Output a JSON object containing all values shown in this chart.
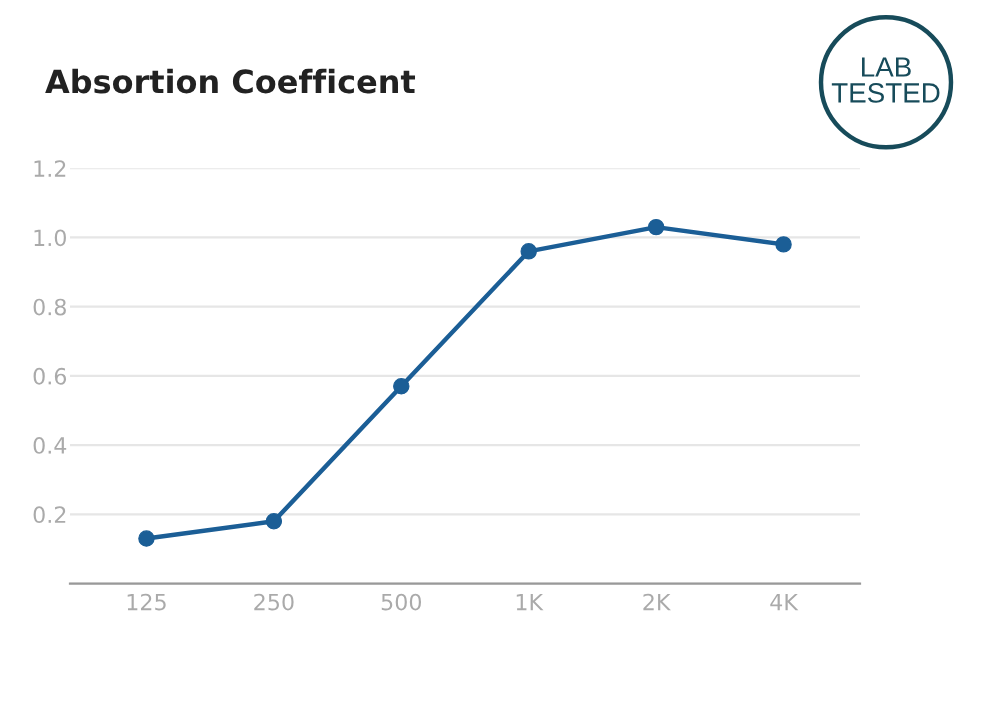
{
  "chart_data": {
    "type": "line",
    "title": "Absortion Coefficent",
    "categories": [
      "125",
      "250",
      "500",
      "1K",
      "2K",
      "4K"
    ],
    "series": [
      {
        "color": "#1b5e96",
        "values": [
          0.13,
          0.18,
          0.57,
          0.96,
          1.03,
          0.98
        ]
      }
    ],
    "ylim": [
      0,
      1.2
    ],
    "yticks": [
      {
        "value": 0,
        "label": null
      },
      0.2,
      0.4,
      0.6,
      0.8,
      {
        "value": 1.0,
        "label": "1.0"
      },
      1.2
    ],
    "grid": "y",
    "marker": "circle",
    "line_style": "solid",
    "annotations": [
      "LAB\nTESTED"
    ]
  }
}
